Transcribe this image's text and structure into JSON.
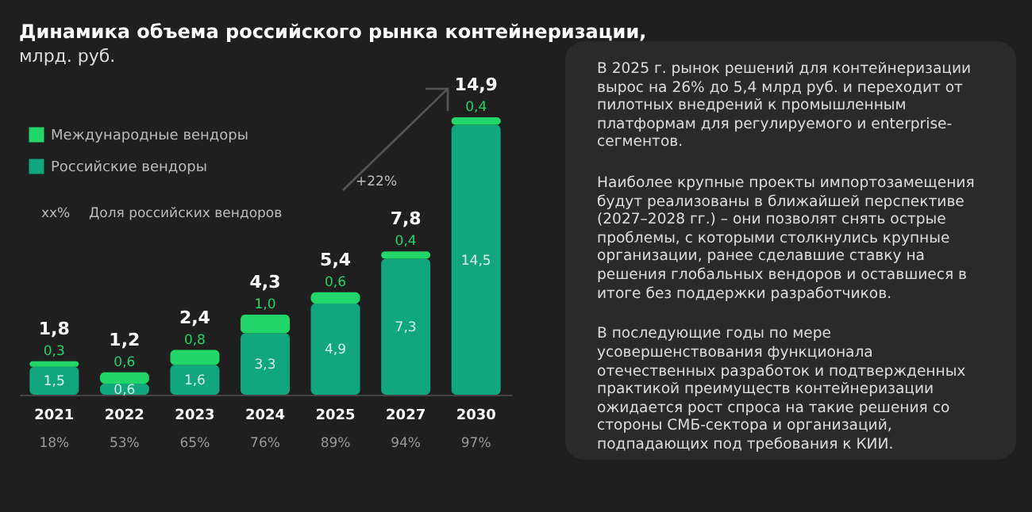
{
  "chart_data": [
    {
      "type": "bar",
      "title": "Динамика объема российского рынка контейнеризации,",
      "subtitle": "млрд. руб.",
      "stacked": true,
      "legend": "top left",
      "categories": [
        "2021",
        "2022",
        "2023",
        "2024",
        "2025",
        "2027",
        "2030"
      ],
      "series": [
        {
          "name": "Российские вендоры",
          "color": "#12a67c",
          "values": [
            1.5,
            0.6,
            1.6,
            3.3,
            4.9,
            7.3,
            14.5
          ],
          "value_labels": [
            "1,5",
            "0,6",
            "1,6",
            "3,3",
            "4,9",
            "7,3",
            "14,5"
          ]
        },
        {
          "name": "Международные вендоры",
          "color": "#22d66a",
          "values": [
            0.3,
            0.6,
            0.8,
            1.0,
            0.6,
            0.4,
            0.4
          ],
          "value_labels": [
            "0,3",
            "0,6",
            "0,8",
            "1,0",
            "0,6",
            "0,4",
            "0,4"
          ]
        }
      ],
      "totals": [
        "1,8",
        "1,2",
        "2,4",
        "4,3",
        "5,4",
        "7,8",
        "14,9"
      ],
      "annotations": [
        "xx%",
        "Доля российских вендоров",
        "+22%",
        "18%",
        "53%",
        "65%",
        "76%",
        "89%",
        "94%",
        "97%"
      ]
    },
    {
      "type": "other",
      "annotations": [
        "В 2025 г. рынок решений для контейнеризации вырос на 26% до 5,4 млрд руб. и переходит от пилотных внедрений к промышленным платформам для регулируемого и enterprise-сегментов.",
        "Наиболее крупные проекты импортозамещения будут реализованы в ближайшей перспективе (2027–2028 гг.) – они позволят снять острые проблемы, с которыми столкнулись крупные организации, ранее сделавшие ставку на решения глобальных вендоров и оставшиеся в итоге без поддержки разработчиков.",
        "В последующие годы по мере усовершенствования функционала отечественных разработок и подтвержденных практикой преимуществ контейнеризации ожидается рост спроса на такие решения со стороны СМБ-сектора и организаций, подпадающих под требования к КИИ."
      ]
    }
  ]
}
